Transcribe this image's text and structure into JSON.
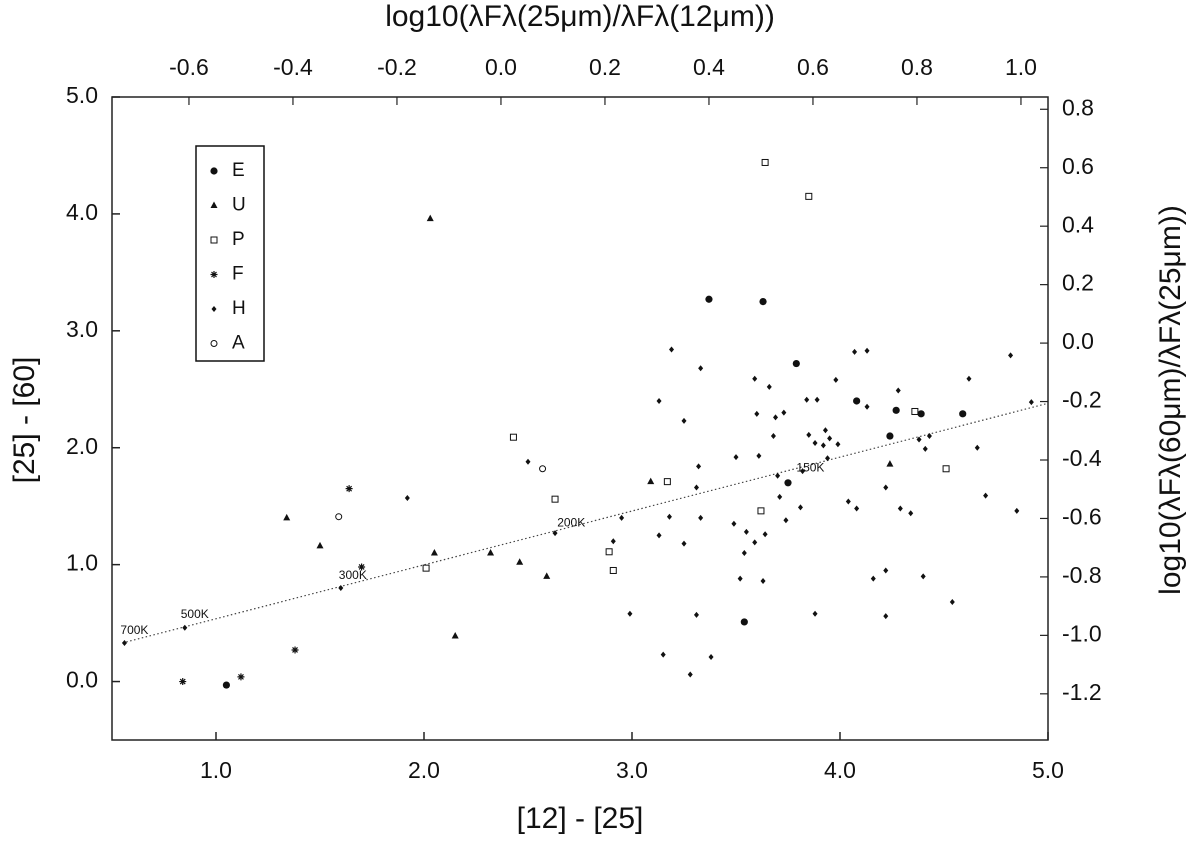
{
  "chart_data": {
    "type": "scatter",
    "x_label": "[12] - [25]",
    "y_label": "[25] - [60]",
    "x2_label": "log10(λFλ(25μm)/λFλ(12μm))",
    "y2_label": "log10(λFλ(60μm)/λFλ(25μm))",
    "xlim": [
      0.5,
      5.0
    ],
    "xticks": [
      {
        "value": 1,
        "label": "1.0"
      },
      {
        "value": 2,
        "label": "2.0"
      },
      {
        "value": 3,
        "label": "3.0"
      },
      {
        "value": 4,
        "label": "4.0"
      },
      {
        "value": 5,
        "label": "5.0"
      }
    ],
    "ylim": [
      -0.5,
      5.0
    ],
    "yticks": [
      {
        "value": 0,
        "label": "0.0"
      },
      {
        "value": 1,
        "label": "1.0"
      },
      {
        "value": 2,
        "label": "2.0"
      },
      {
        "value": 3,
        "label": "3.0"
      },
      {
        "value": 4,
        "label": "4.0"
      },
      {
        "value": 5,
        "label": "5.0"
      }
    ],
    "x2lim": [
      -0.748,
      1.052
    ],
    "x2ticks": [
      -0.6,
      -0.4,
      -0.2,
      {
        "value": 0,
        "label": "0.0"
      },
      0.2,
      0.4,
      0.6,
      0.8,
      {
        "value": 1,
        "label": "1.0"
      }
    ],
    "y2lim": [
      -1.358,
      0.842
    ],
    "y2ticks": [
      -1.2,
      {
        "value": -1,
        "label": "-1.0"
      },
      -0.8,
      -0.6,
      -0.4,
      -0.2,
      {
        "value": 0,
        "label": "0.0"
      },
      0.2,
      0.4,
      0.6,
      0.8
    ],
    "series": [
      {
        "name": "E",
        "marker": "circle-filled",
        "color": "#111",
        "x": [
          1.05,
          3.54,
          3.37,
          3.63,
          3.79,
          4.08,
          4.27,
          4.24,
          4.39,
          4.59,
          3.75
        ],
        "values": [
          -0.03,
          0.51,
          3.27,
          3.25,
          2.72,
          2.4,
          2.32,
          2.1,
          2.29,
          2.29,
          1.7
        ]
      },
      {
        "name": "U",
        "marker": "triangle",
        "color": "#111",
        "x": [
          1.34,
          1.5,
          2.03,
          2.05,
          2.32,
          2.15,
          2.46,
          2.59,
          3.09,
          4.24
        ],
        "values": [
          1.4,
          1.16,
          3.96,
          1.1,
          1.1,
          0.39,
          1.02,
          0.9,
          1.71,
          1.86
        ]
      },
      {
        "name": "P",
        "marker": "square-open",
        "color": "#111",
        "x": [
          3.64,
          3.85,
          2.43,
          2.63,
          3.17,
          2.89,
          2.91,
          3.62,
          2.01,
          4.36,
          4.51
        ],
        "values": [
          4.44,
          4.15,
          2.09,
          1.56,
          1.71,
          1.11,
          0.95,
          1.46,
          0.97,
          2.31,
          1.82
        ]
      },
      {
        "name": "F",
        "marker": "asterisk",
        "color": "#111",
        "x": [
          1.64,
          1.7,
          1.38,
          0.84,
          1.12
        ],
        "values": [
          1.65,
          0.98,
          0.27,
          0.0,
          0.04
        ]
      },
      {
        "name": "H",
        "marker": "diamond",
        "color": "#111",
        "x": [
          0.56,
          0.85,
          1.6,
          1.92,
          2.5,
          2.63,
          2.95,
          2.91,
          2.99,
          3.15,
          3.28,
          3.38,
          3.31,
          3.13,
          3.19,
          3.25,
          3.32,
          3.33,
          3.31,
          3.13,
          3.18,
          3.25,
          3.33,
          3.5,
          3.49,
          3.54,
          3.55,
          3.52,
          3.59,
          3.6,
          3.61,
          3.59,
          3.64,
          3.63,
          3.66,
          3.68,
          3.69,
          3.7,
          3.71,
          3.74,
          3.73,
          3.82,
          3.81,
          3.84,
          3.85,
          3.88,
          3.92,
          3.93,
          3.95,
          3.89,
          3.94,
          3.98,
          3.99,
          3.88,
          4.04,
          4.08,
          4.07,
          4.13,
          4.13,
          4.16,
          4.22,
          4.22,
          4.22,
          4.28,
          4.29,
          4.34,
          4.38,
          4.41,
          4.4,
          4.43,
          4.62,
          4.66,
          4.7,
          4.82,
          4.85,
          4.92,
          4.54
        ],
        "values": [
          0.33,
          0.46,
          0.8,
          1.57,
          1.88,
          1.27,
          1.4,
          1.2,
          0.58,
          0.23,
          0.06,
          0.21,
          0.57,
          2.4,
          2.84,
          2.23,
          1.84,
          1.4,
          1.66,
          1.25,
          1.41,
          1.18,
          2.68,
          1.92,
          1.35,
          1.1,
          1.28,
          0.88,
          2.59,
          2.29,
          1.93,
          1.19,
          1.26,
          0.86,
          2.52,
          2.1,
          2.26,
          1.76,
          1.58,
          1.38,
          2.3,
          1.8,
          1.49,
          2.41,
          2.11,
          2.04,
          2.02,
          2.15,
          2.08,
          2.41,
          1.91,
          2.58,
          2.03,
          0.58,
          1.54,
          1.48,
          2.82,
          2.83,
          2.35,
          0.88,
          0.95,
          0.56,
          1.66,
          2.49,
          1.48,
          1.44,
          2.07,
          1.99,
          0.9,
          2.1,
          2.59,
          2.0,
          1.59,
          2.79,
          1.46,
          2.39,
          0.68
        ]
      },
      {
        "name": "A",
        "marker": "circle-open",
        "color": "#111",
        "x": [
          1.59,
          2.57
        ],
        "values": [
          1.41,
          1.82
        ]
      }
    ],
    "reference_line": {
      "x": [
        0.55,
        5.0
      ],
      "values": [
        0.33,
        2.38
      ],
      "style": "dotted",
      "color": "#444"
    },
    "annotations": [
      {
        "text": "700K",
        "x": 0.55,
        "y": 0.33
      },
      {
        "text": "500K",
        "x": 0.84,
        "y": 0.47
      },
      {
        "text": "300K",
        "x": 1.6,
        "y": 0.8
      },
      {
        "text": "200K",
        "x": 2.65,
        "y": 1.25
      },
      {
        "text": "150K",
        "x": 3.8,
        "y": 1.72
      }
    ],
    "legend": "upper left"
  }
}
